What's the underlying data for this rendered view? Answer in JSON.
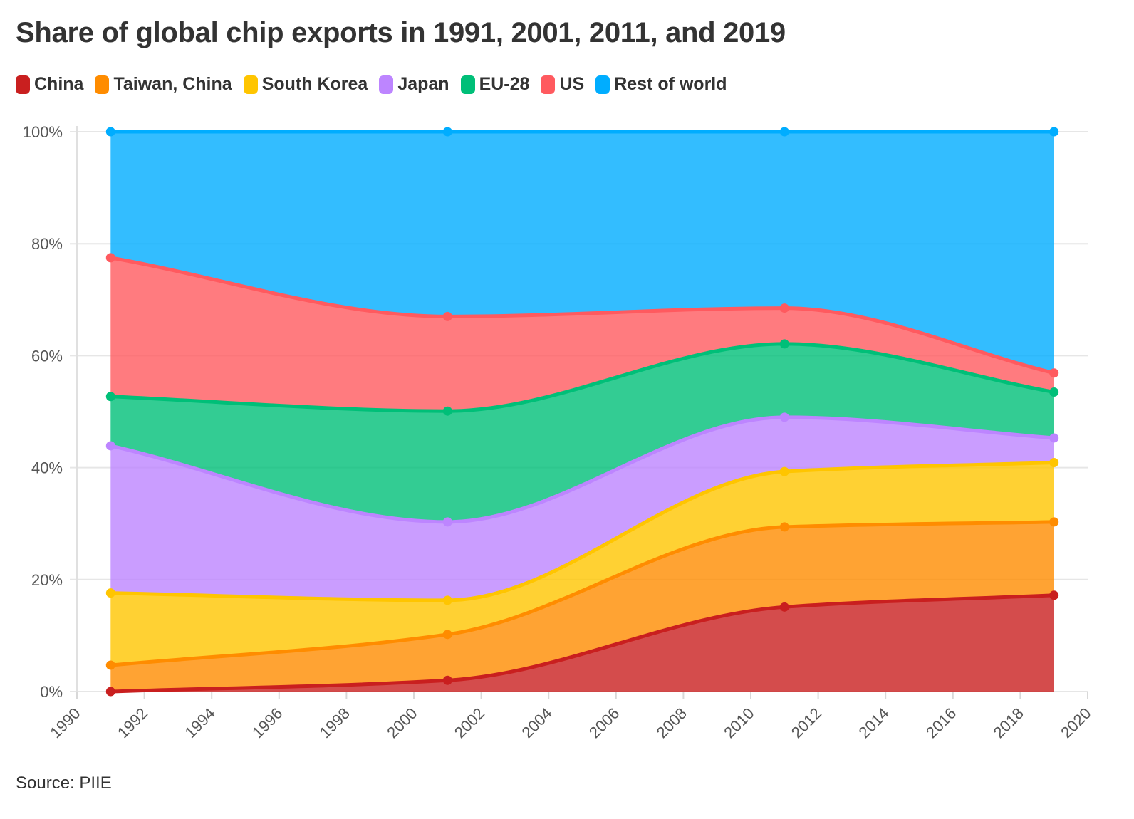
{
  "title": "Share of global chip exports in 1991, 2001, 2011, and 2019",
  "source": "Source: PIIE",
  "chart_data": {
    "type": "area",
    "stacked": true,
    "x": [
      1991,
      2001,
      2011,
      2019
    ],
    "series": [
      {
        "name": "China",
        "color": "#c91f1f",
        "values": [
          0.0,
          2.0,
          15.1,
          17.2
        ]
      },
      {
        "name": "Taiwan, China",
        "color": "#ff8c00",
        "values": [
          4.7,
          8.2,
          14.3,
          13.1
        ]
      },
      {
        "name": "South Korea",
        "color": "#ffc500",
        "values": [
          12.9,
          6.1,
          9.9,
          10.6
        ]
      },
      {
        "name": "Japan",
        "color": "#bd85ff",
        "values": [
          26.3,
          14.0,
          9.7,
          4.4
        ]
      },
      {
        "name": "EU-28",
        "color": "#00bf78",
        "values": [
          8.8,
          19.8,
          13.1,
          8.2
        ]
      },
      {
        "name": "US",
        "color": "#ff5a5f",
        "values": [
          24.8,
          16.9,
          6.4,
          3.4
        ]
      },
      {
        "name": "Rest of world",
        "color": "#00adff",
        "values": [
          22.5,
          33.0,
          31.5,
          43.1
        ]
      }
    ],
    "xlim": [
      1990,
      2020
    ],
    "ylim": [
      0,
      100
    ],
    "x_ticks": [
      "1990",
      "1992",
      "1994",
      "1996",
      "1998",
      "2000",
      "2002",
      "2004",
      "2006",
      "2008",
      "2010",
      "2012",
      "2014",
      "2016",
      "2018",
      "2020"
    ],
    "y_ticks": [
      "0%",
      "20%",
      "40%",
      "60%",
      "80%",
      "100%"
    ],
    "grid": true,
    "legend_position": "top-left"
  }
}
